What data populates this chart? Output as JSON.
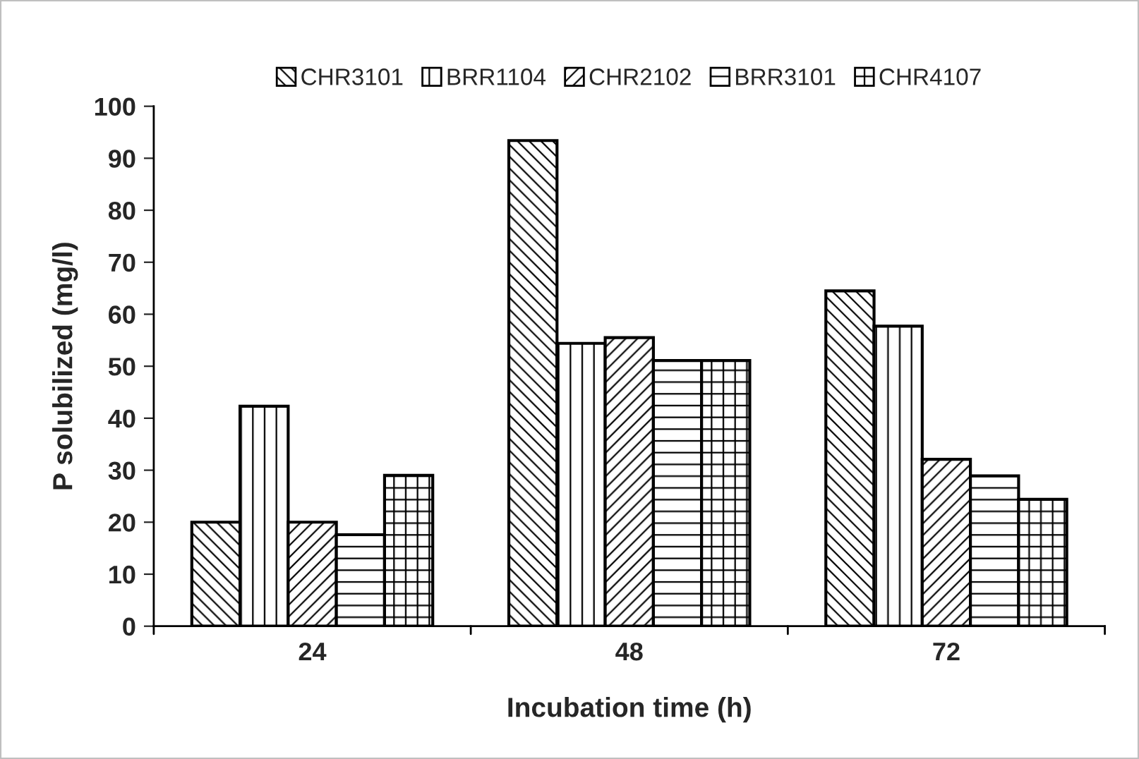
{
  "chart_data": {
    "type": "bar",
    "xlabel": "Incubation time (h)",
    "ylabel": "P solubilized (mg/l)",
    "categories": [
      "24",
      "48",
      "72"
    ],
    "series": [
      {
        "name": "CHR3101",
        "color": "#000000",
        "values": [
          20,
          93.4,
          64.5
        ]
      },
      {
        "name": "BRR1104",
        "color": "#000000",
        "values": [
          42.3,
          54.4,
          57.7
        ]
      },
      {
        "name": "CHR2102",
        "color": "#000000",
        "values": [
          20,
          55.5,
          32.1
        ]
      },
      {
        "name": "BRR3101",
        "color": "#000000",
        "values": [
          17.6,
          51.1,
          28.9
        ]
      },
      {
        "name": "CHR4107",
        "color": "#000000",
        "values": [
          29,
          51.1,
          24.4
        ]
      }
    ],
    "ylim": [
      0,
      100
    ],
    "yticks": [
      0,
      10,
      20,
      30,
      40,
      50,
      60,
      70,
      80,
      90,
      100
    ],
    "grid": false,
    "legend": "top"
  }
}
